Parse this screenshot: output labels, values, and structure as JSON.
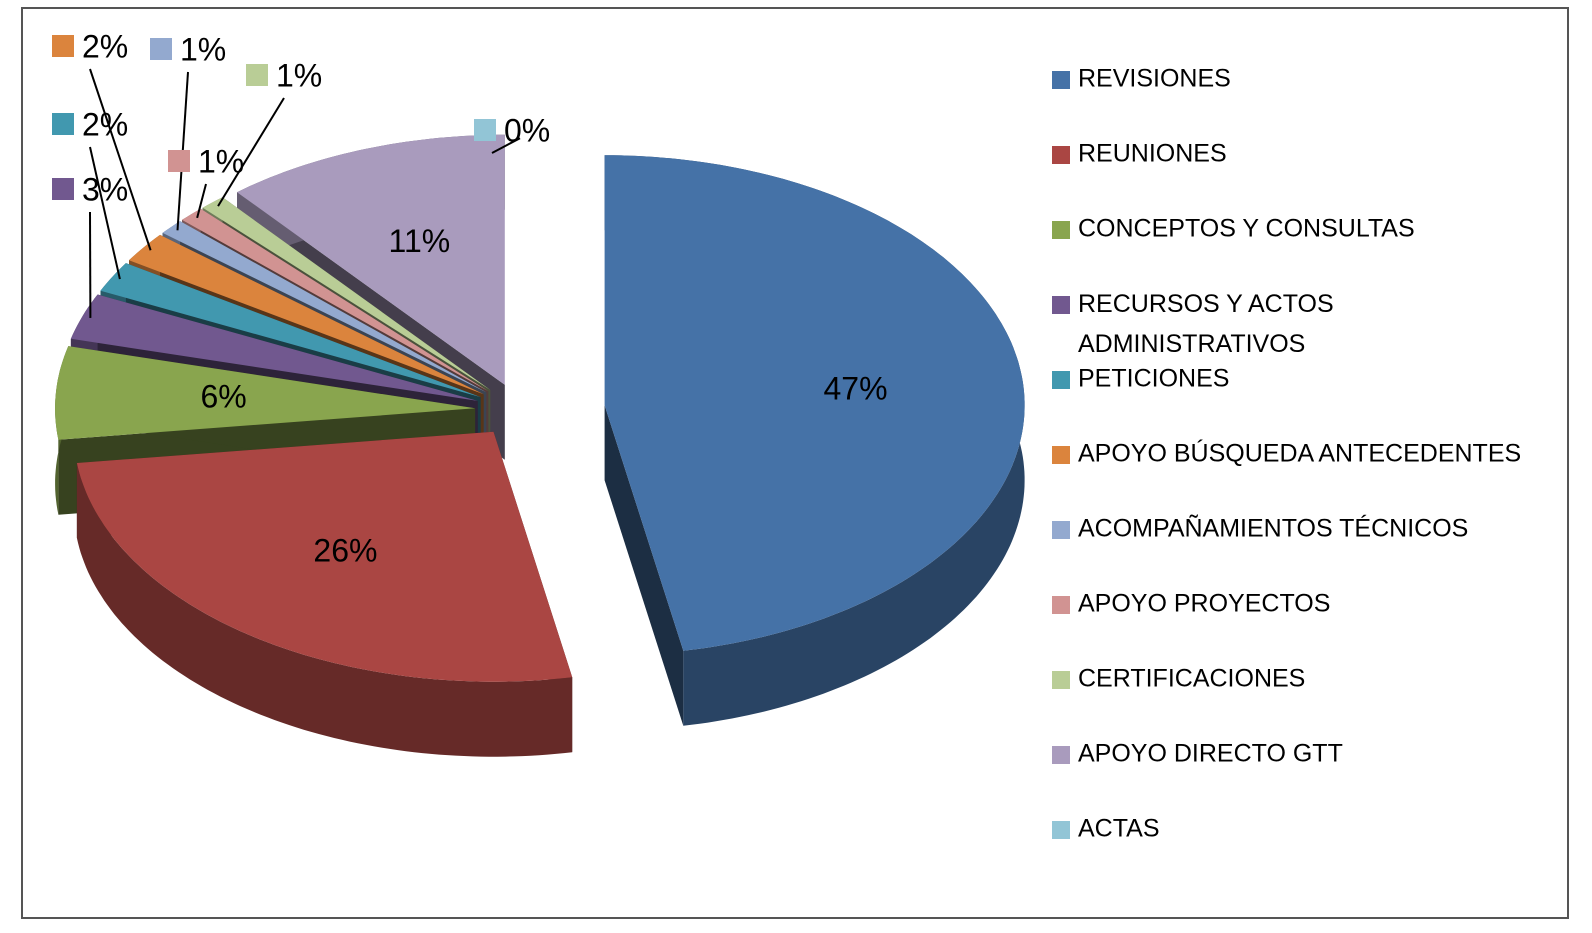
{
  "chart_data": {
    "type": "pie",
    "categories": [
      "REVISIONES",
      "REUNIONES",
      "CONCEPTOS Y CONSULTAS",
      "RECURSOS Y ACTOS ADMINISTRATIVOS",
      "PETICIONES",
      "APOYO BÚSQUEDA ANTECEDENTES",
      "ACOMPAÑAMIENTOS TÉCNICOS",
      "APOYO PROYECTOS",
      "CERTIFICACIONES",
      "APOYO DIRECTO GTT",
      "ACTAS"
    ],
    "values": [
      47,
      26,
      6,
      3,
      2,
      2,
      1,
      1,
      1,
      11,
      0
    ],
    "value_labels": [
      "47%",
      "26%",
      "6%",
      "3%",
      "2%",
      "2%",
      "1%",
      "1%",
      "1%",
      "11%",
      "0%"
    ],
    "colors": [
      "#4572a7",
      "#aa4643",
      "#89a54e",
      "#71588f",
      "#4198af",
      "#db843d",
      "#93a9cf",
      "#d19392",
      "#b9cd96",
      "#a99bbd",
      "#92c5d6"
    ],
    "legend": "right"
  }
}
